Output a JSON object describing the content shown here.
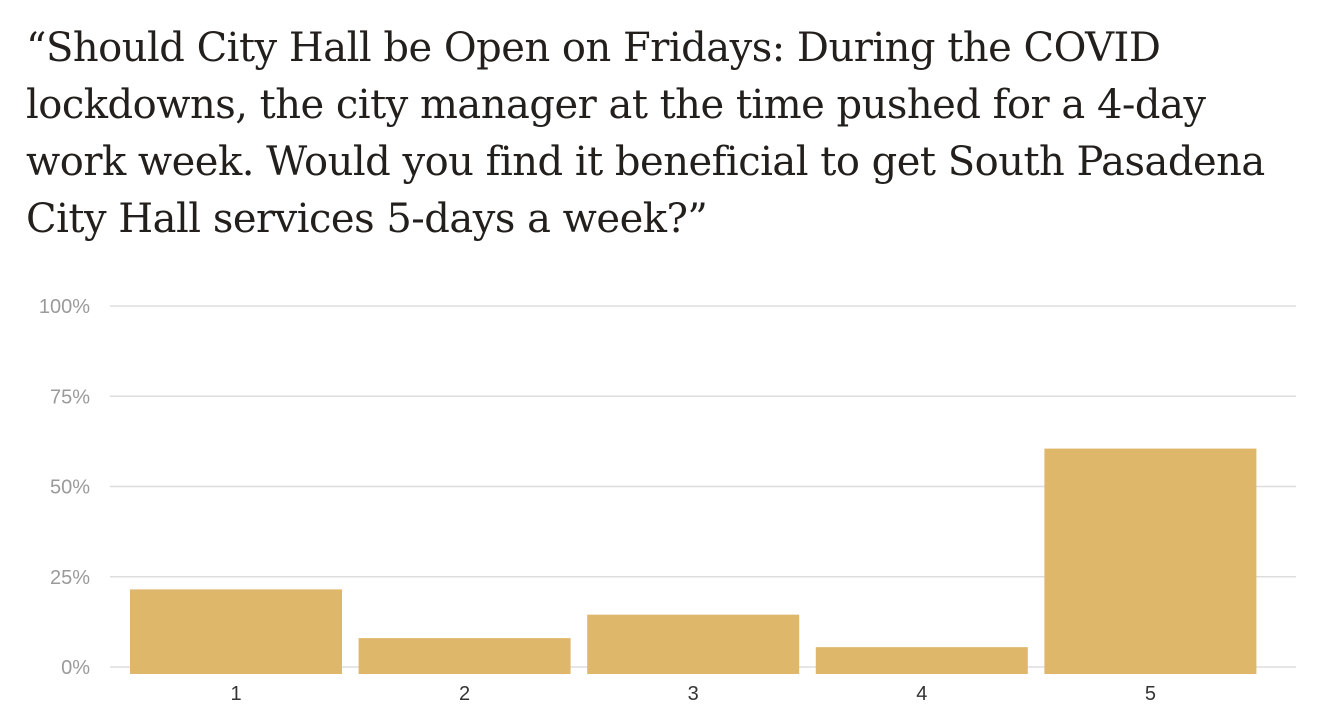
{
  "chart_data": {
    "type": "bar",
    "title": "“Should City Hall be Open on Fridays: During the COVID lockdowns, the city manager at the time pushed for a 4-day work week. Would you find it beneficial to get South Pasadena City Hall services 5-days a week?”",
    "categories": [
      "1",
      "2",
      "3",
      "4",
      "5"
    ],
    "values": [
      21.5,
      8,
      14.5,
      5.5,
      60.5
    ],
    "yticks": [
      "0%",
      "25%",
      "50%",
      "75%",
      "100%"
    ],
    "ylim": [
      0,
      100
    ],
    "xlabel": "",
    "ylabel": "",
    "grid": true,
    "bar_color": "#dfb76b",
    "grid_color": "#dddddd"
  }
}
